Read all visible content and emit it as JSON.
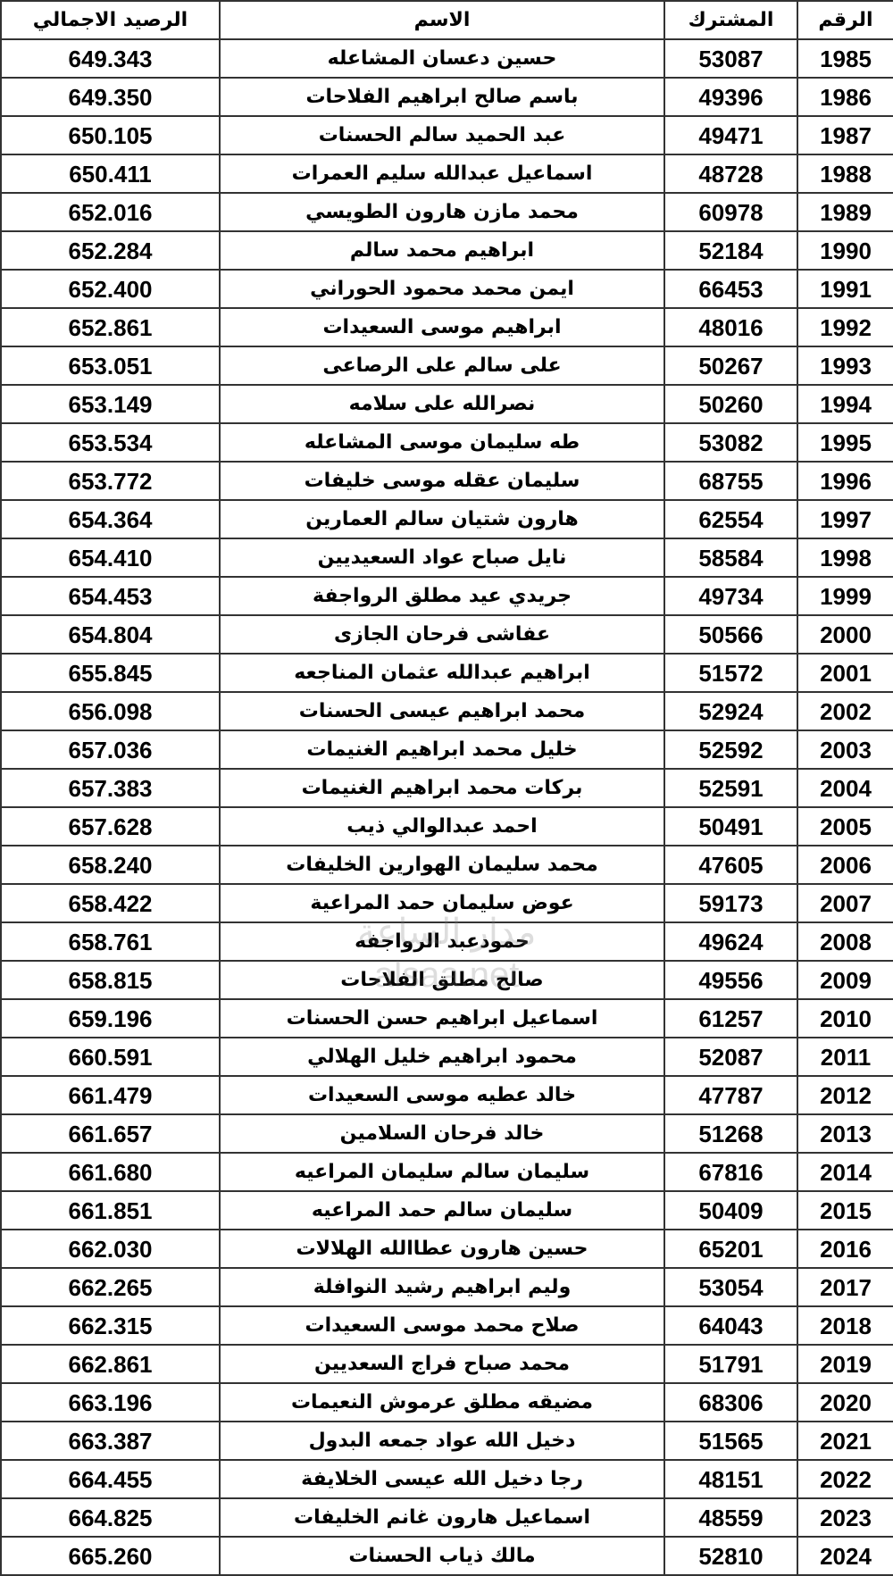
{
  "table": {
    "headers": {
      "id": "الرقم",
      "subscriber": "المشترك",
      "name": "الاسم",
      "balance": "الرصيد الاجمالي"
    },
    "rows": [
      {
        "id": "1985",
        "subscriber": "53087",
        "name": "حسين دعسان المشاعله",
        "balance": "649.343"
      },
      {
        "id": "1986",
        "subscriber": "49396",
        "name": "باسم صالح ابراهيم الفلاحات",
        "balance": "649.350"
      },
      {
        "id": "1987",
        "subscriber": "49471",
        "name": "عبد الحميد سالم الحسنات",
        "balance": "650.105"
      },
      {
        "id": "1988",
        "subscriber": "48728",
        "name": "اسماعيل عبدالله سليم العمرات",
        "balance": "650.411"
      },
      {
        "id": "1989",
        "subscriber": "60978",
        "name": "محمد مازن هارون الطويسي",
        "balance": "652.016"
      },
      {
        "id": "1990",
        "subscriber": "52184",
        "name": "ابراهيم محمد سالم",
        "balance": "652.284"
      },
      {
        "id": "1991",
        "subscriber": "66453",
        "name": "ايمن محمد محمود الحوراني",
        "balance": "652.400"
      },
      {
        "id": "1992",
        "subscriber": "48016",
        "name": "ابراهيم موسى السعيدات",
        "balance": "652.861"
      },
      {
        "id": "1993",
        "subscriber": "50267",
        "name": "على سالم على الرصاعى",
        "balance": "653.051"
      },
      {
        "id": "1994",
        "subscriber": "50260",
        "name": "نصرالله على سلامه",
        "balance": "653.149"
      },
      {
        "id": "1995",
        "subscriber": "53082",
        "name": "طه سليمان موسى المشاعله",
        "balance": "653.534"
      },
      {
        "id": "1996",
        "subscriber": "68755",
        "name": "سليمان عقله موسى خليفات",
        "balance": "653.772"
      },
      {
        "id": "1997",
        "subscriber": "62554",
        "name": "هارون شتيان سالم العمارين",
        "balance": "654.364"
      },
      {
        "id": "1998",
        "subscriber": "58584",
        "name": "نايل صباح عواد السعيديين",
        "balance": "654.410"
      },
      {
        "id": "1999",
        "subscriber": "49734",
        "name": "جريدي عيد مطلق الرواجفة",
        "balance": "654.453"
      },
      {
        "id": "2000",
        "subscriber": "50566",
        "name": "عفاشى فرحان الجازى",
        "balance": "654.804"
      },
      {
        "id": "2001",
        "subscriber": "51572",
        "name": "ابراهيم عبدالله عثمان المناجعه",
        "balance": "655.845"
      },
      {
        "id": "2002",
        "subscriber": "52924",
        "name": "محمد ابراهيم عيسى الحسنات",
        "balance": "656.098"
      },
      {
        "id": "2003",
        "subscriber": "52592",
        "name": "خليل محمد ابراهيم الغنيمات",
        "balance": "657.036"
      },
      {
        "id": "2004",
        "subscriber": "52591",
        "name": "بركات محمد ابراهيم الغنيمات",
        "balance": "657.383"
      },
      {
        "id": "2005",
        "subscriber": "50491",
        "name": "احمد عبدالوالي ذيب",
        "balance": "657.628"
      },
      {
        "id": "2006",
        "subscriber": "47605",
        "name": "محمد سليمان الهوارين الخليفات",
        "balance": "658.240"
      },
      {
        "id": "2007",
        "subscriber": "59173",
        "name": "عوض سليمان حمد المراعية",
        "balance": "658.422"
      },
      {
        "id": "2008",
        "subscriber": "49624",
        "name": "حمودعبد الرواجفه",
        "balance": "658.761"
      },
      {
        "id": "2009",
        "subscriber": "49556",
        "name": "صالح مطلق الفلاحات",
        "balance": "658.815"
      },
      {
        "id": "2010",
        "subscriber": "61257",
        "name": "اسماعيل ابراهيم حسن الحسنات",
        "balance": "659.196"
      },
      {
        "id": "2011",
        "subscriber": "52087",
        "name": "محمود ابراهيم خليل الهلالي",
        "balance": "660.591"
      },
      {
        "id": "2012",
        "subscriber": "47787",
        "name": "خالد عطيه موسى السعيدات",
        "balance": "661.479"
      },
      {
        "id": "2013",
        "subscriber": "51268",
        "name": "خالد فرحان السلامين",
        "balance": "661.657"
      },
      {
        "id": "2014",
        "subscriber": "67816",
        "name": "سليمان سالم سليمان المراعيه",
        "balance": "661.680"
      },
      {
        "id": "2015",
        "subscriber": "50409",
        "name": "سليمان سالم حمد المراعيه",
        "balance": "661.851"
      },
      {
        "id": "2016",
        "subscriber": "65201",
        "name": "حسين هارون عطاالله الهلالات",
        "balance": "662.030"
      },
      {
        "id": "2017",
        "subscriber": "53054",
        "name": "وليم ابراهيم رشيد النوافلة",
        "balance": "662.265"
      },
      {
        "id": "2018",
        "subscriber": "64043",
        "name": "صلاح محمد موسى السعيدات",
        "balance": "662.315"
      },
      {
        "id": "2019",
        "subscriber": "51791",
        "name": "محمد صباح فراج السعديين",
        "balance": "662.861"
      },
      {
        "id": "2020",
        "subscriber": "68306",
        "name": "مضيقه مطلق عرموش النعيمات",
        "balance": "663.196"
      },
      {
        "id": "2021",
        "subscriber": "51565",
        "name": "دخيل الله عواد جمعه البدول",
        "balance": "663.387"
      },
      {
        "id": "2022",
        "subscriber": "48151",
        "name": "رجا دخيل الله عيسى الخلايفة",
        "balance": "664.455"
      },
      {
        "id": "2023",
        "subscriber": "48559",
        "name": "اسماعيل هارون غانم الخليفات",
        "balance": "664.825"
      },
      {
        "id": "2024",
        "subscriber": "52810",
        "name": "مالك ذياب الحسنات",
        "balance": "665.260"
      }
    ]
  },
  "watermark": {
    "arabic": "مدار الساعة",
    "latin": "alsaa.net"
  }
}
